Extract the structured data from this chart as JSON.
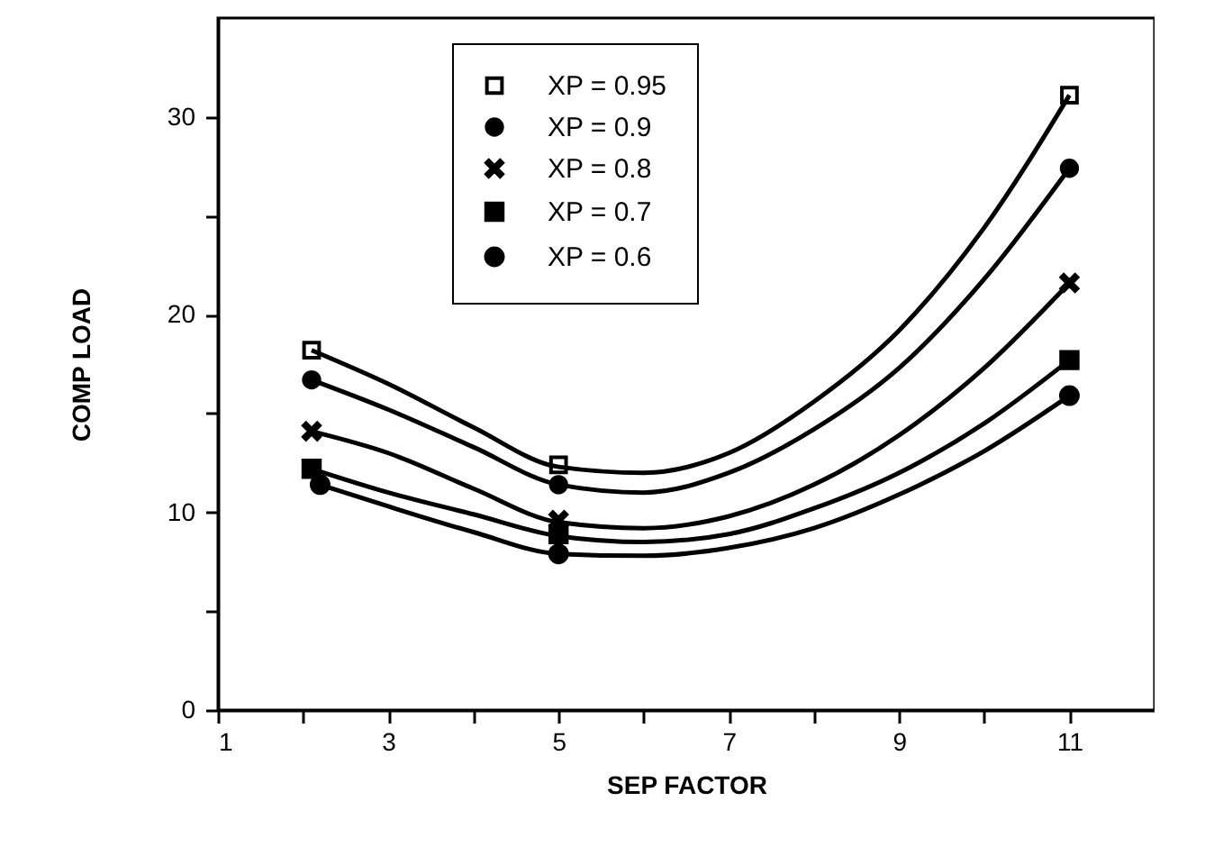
{
  "chart_data": {
    "type": "line",
    "xlabel": "SEP FACTOR",
    "ylabel": "COMP LOAD",
    "xlim": [
      1,
      12
    ],
    "ylim": [
      0,
      35
    ],
    "xticks": [
      1,
      {
        "value": 2,
        "label": null
      },
      3,
      {
        "value": 4,
        "label": null
      },
      5,
      {
        "value": 6,
        "label": null
      },
      7,
      {
        "value": 8,
        "label": null
      },
      9,
      {
        "value": 10,
        "label": null
      },
      11
    ],
    "yticks": [
      0,
      {
        "value": 5,
        "label": null
      },
      10,
      {
        "value": 15,
        "label": null
      },
      20,
      {
        "value": 25,
        "label": null
      },
      30
    ],
    "grid": false,
    "legend": "top",
    "line_style": "solid",
    "series": [
      {
        "color": "#000000",
        "marker": "none",
        "x": [
          2.1,
          3,
          4,
          5,
          6,
          7,
          8,
          9,
          10,
          11
        ],
        "values": [
          18.2,
          16.5,
          14.3,
          12.3,
          12.0,
          13.0,
          15.6,
          19.2,
          24.4,
          31.1
        ]
      },
      {
        "color": "#000000",
        "marker": "none",
        "x": [
          2.1,
          3,
          4,
          5,
          6,
          7,
          8,
          9,
          10,
          11
        ],
        "values": [
          16.7,
          15.2,
          13.3,
          11.4,
          11.0,
          12.0,
          14.2,
          17.3,
          21.8,
          27.4
        ]
      },
      {
        "color": "#000000",
        "marker": "none",
        "x": [
          2.1,
          3,
          4,
          5,
          6,
          7,
          8,
          9,
          10,
          11
        ],
        "values": [
          14.1,
          13.0,
          11.2,
          9.5,
          9.2,
          9.8,
          11.4,
          13.9,
          17.3,
          21.6
        ]
      },
      {
        "color": "#000000",
        "marker": "none",
        "x": [
          2.1,
          3,
          4,
          5,
          6,
          7,
          8,
          9,
          10,
          11
        ],
        "values": [
          12.2,
          11.0,
          9.9,
          8.8,
          8.5,
          8.9,
          10.2,
          12.0,
          14.5,
          17.7
        ]
      },
      {
        "color": "#000000",
        "marker": "none",
        "x": [
          2.2,
          3,
          4,
          5,
          6,
          7,
          8,
          9,
          10,
          11
        ],
        "values": [
          11.4,
          10.3,
          9.0,
          7.9,
          7.8,
          8.2,
          9.2,
          10.9,
          13.1,
          15.9
        ]
      },
      {
        "type": "scatter",
        "name": "XP = 0.95",
        "color": "#000000",
        "marker": "square",
        "x": [
          2.1,
          5,
          11
        ],
        "values": [
          18.2,
          12.4,
          31.1
        ]
      },
      {
        "type": "scatter",
        "name": "XP = 0.9",
        "color": "#000000",
        "marker": "circle",
        "x": [
          2.1,
          5,
          11
        ],
        "values": [
          16.7,
          11.4,
          27.4
        ]
      },
      {
        "type": "scatter",
        "name": "XP = 0.8",
        "color": "#000000",
        "marker": "cross",
        "x": [
          2.1,
          5,
          11
        ],
        "values": [
          14.1,
          9.6,
          21.6
        ]
      },
      {
        "type": "scatter",
        "name": "XP = 0.7",
        "color": "#000000",
        "marker": "square",
        "x": [
          2.1,
          5,
          11
        ],
        "values": [
          12.2,
          8.9,
          17.7
        ]
      },
      {
        "type": "scatter",
        "name": "XP = 0.6",
        "color": "#000000",
        "marker": "circle",
        "x": [
          2.2,
          5,
          11
        ],
        "values": [
          11.4,
          7.9,
          15.9
        ]
      }
    ]
  }
}
